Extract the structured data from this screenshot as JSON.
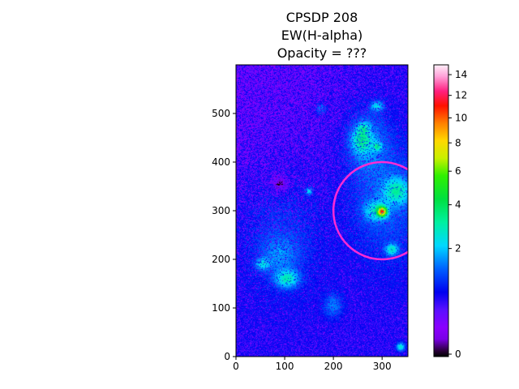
{
  "chart_data": {
    "type": "heatmap",
    "title": [
      "CPSDP 208",
      "EW(H-alpha)",
      "Opacity = ???"
    ],
    "xlabel": "",
    "ylabel": "",
    "xlim": [
      0,
      353
    ],
    "ylim": [
      0,
      600
    ],
    "x_ticks": [
      0,
      100,
      200,
      300
    ],
    "y_ticks": [
      0,
      100,
      200,
      300,
      400,
      500
    ],
    "colormap": "gist_ncar-like (black-purple-blue-cyan-green-yellow-red-pink-white)",
    "colorbar": {
      "ticks": [
        0,
        2,
        4,
        6,
        8,
        10,
        12,
        14
      ],
      "range": [
        0,
        15
      ],
      "scale": "nonlinear (sqrt-like)"
    },
    "background_level": 0.6,
    "emission_blobs": [
      {
        "x": 95,
        "y": 240,
        "sx": 60,
        "sy": 90,
        "amp": 0.5
      },
      {
        "x": 105,
        "y": 160,
        "sx": 16,
        "sy": 12,
        "amp": 2.0
      },
      {
        "x": 55,
        "y": 190,
        "sx": 10,
        "sy": 8,
        "amp": 1.4
      },
      {
        "x": 90,
        "y": 210,
        "sx": 25,
        "sy": 25,
        "amp": 0.7
      },
      {
        "x": 270,
        "y": 440,
        "sx": 30,
        "sy": 50,
        "amp": 0.8
      },
      {
        "x": 258,
        "y": 445,
        "sx": 14,
        "sy": 18,
        "amp": 2.0
      },
      {
        "x": 310,
        "y": 320,
        "sx": 55,
        "sy": 95,
        "amp": 0.7
      },
      {
        "x": 330,
        "y": 340,
        "sx": 18,
        "sy": 18,
        "amp": 2.0
      },
      {
        "x": 300,
        "y": 298,
        "sx": 6,
        "sy": 6,
        "amp": 9.0
      },
      {
        "x": 287,
        "y": 300,
        "sx": 16,
        "sy": 14,
        "amp": 1.6
      },
      {
        "x": 320,
        "y": 220,
        "sx": 9,
        "sy": 8,
        "amp": 1.8
      },
      {
        "x": 290,
        "y": 432,
        "sx": 6,
        "sy": 6,
        "amp": 1.8
      },
      {
        "x": 290,
        "y": 515,
        "sx": 9,
        "sy": 7,
        "amp": 1.5
      },
      {
        "x": 175,
        "y": 510,
        "sx": 8,
        "sy": 8,
        "amp": 0.9
      },
      {
        "x": 150,
        "y": 340,
        "sx": 5,
        "sy": 5,
        "amp": 1.5
      },
      {
        "x": 200,
        "y": 105,
        "sx": 14,
        "sy": 18,
        "amp": 0.9
      },
      {
        "x": 338,
        "y": 20,
        "sx": 6,
        "sy": 6,
        "amp": 2.0
      },
      {
        "x": 262,
        "y": 470,
        "sx": 8,
        "sy": 8,
        "amp": 1.2
      }
    ],
    "dark_regions": [
      {
        "x": 90,
        "y": 355,
        "sx": 13,
        "sy": 13
      },
      {
        "x": 0,
        "y": 600,
        "sx": 190,
        "sy": 260
      }
    ],
    "annotation_circle": {
      "x": 300,
      "y": 300,
      "r": 100,
      "color": "#ff2ad4"
    }
  }
}
